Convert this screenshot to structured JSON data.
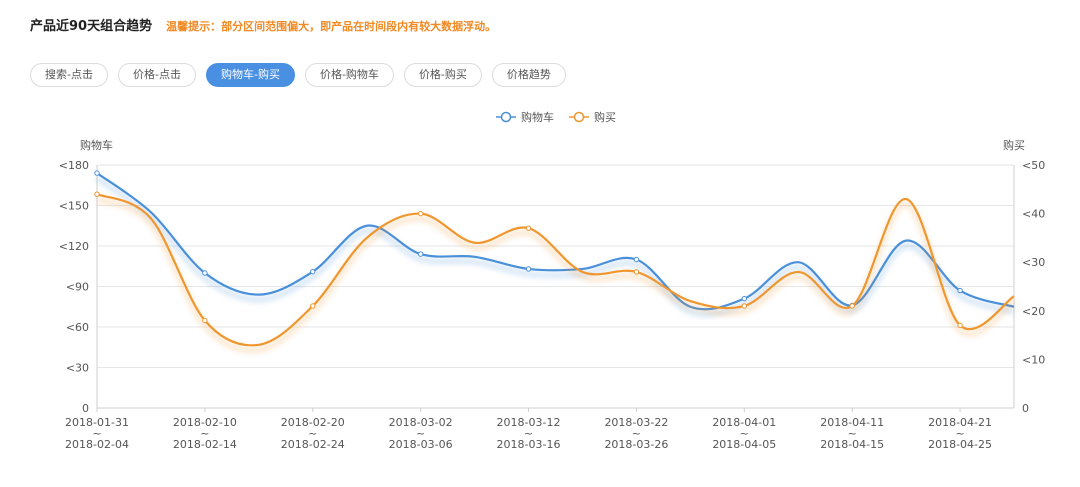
{
  "header": {
    "title": "产品近90天组合趋势",
    "hint": "温馨提示：部分区间范围偏大，即产品在时间段内有较大数据浮动。"
  },
  "tabs": [
    {
      "label": "搜索-点击",
      "active": false
    },
    {
      "label": "价格-点击",
      "active": false
    },
    {
      "label": "购物车-购买",
      "active": true
    },
    {
      "label": "价格-购物车",
      "active": false
    },
    {
      "label": "价格-购买",
      "active": false
    },
    {
      "label": "价格趋势",
      "active": false
    }
  ],
  "colors": {
    "cart": "#4a90d9",
    "buy": "#f0962e",
    "active_tab": "#4a90e2",
    "hint": "#f08a24"
  },
  "chart_data": {
    "type": "line",
    "categories": [
      [
        "2018-01-31",
        "~",
        "2018-02-04"
      ],
      [
        "2018-02-10",
        "~",
        "2018-02-14"
      ],
      [
        "2018-02-20",
        "~",
        "2018-02-24"
      ],
      [
        "2018-03-02",
        "~",
        "2018-03-06"
      ],
      [
        "2018-03-12",
        "~",
        "2018-03-16"
      ],
      [
        "2018-03-22",
        "~",
        "2018-03-26"
      ],
      [
        "2018-04-01",
        "~",
        "2018-04-05"
      ],
      [
        "2018-04-11",
        "~",
        "2018-04-15"
      ],
      [
        "2018-04-21",
        "~",
        "2018-04-25"
      ]
    ],
    "x": [
      0,
      2,
      4,
      6,
      8,
      10,
      12,
      14,
      16,
      17
    ],
    "series": [
      {
        "name": "购物车",
        "axis": "left",
        "color": "#4a90d9",
        "x": [
          0,
          1,
          2,
          3,
          4,
          5,
          6,
          7,
          8,
          9,
          10,
          11,
          12,
          13,
          14,
          15,
          16,
          17
        ],
        "values": [
          174,
          145,
          100,
          84,
          101,
          135,
          114,
          112,
          103,
          103,
          110,
          75,
          81,
          108,
          76,
          124,
          87,
          75
        ],
        "markers": [
          0,
          2,
          4,
          6,
          8,
          10,
          12,
          14,
          16
        ]
      },
      {
        "name": "购买",
        "axis": "right",
        "color": "#f0962e",
        "x": [
          0,
          1,
          2,
          3,
          4,
          5,
          6,
          7,
          8,
          9,
          10,
          11,
          12,
          13,
          14,
          15,
          16,
          17
        ],
        "values": [
          44,
          39,
          18,
          13,
          21,
          35,
          40,
          34,
          37,
          28,
          28,
          22,
          21,
          28,
          21,
          43,
          17,
          23
        ],
        "markers": [
          0,
          2,
          4,
          6,
          8,
          10,
          12,
          14,
          16
        ]
      }
    ],
    "y_left": {
      "label": "购物车",
      "ticks": [
        "0",
        "<30",
        "<60",
        "<90",
        "<120",
        "<150",
        "<180"
      ],
      "values": [
        0,
        30,
        60,
        90,
        120,
        150,
        180
      ],
      "ylim": [
        0,
        180
      ]
    },
    "y_right": {
      "label": "购买",
      "ticks": [
        "0",
        "<10",
        "<20",
        "<30",
        "<40",
        "<50"
      ],
      "values": [
        0,
        10,
        20,
        30,
        40,
        50
      ],
      "ylim": [
        0,
        50
      ]
    },
    "legend": [
      "购物车",
      "购买"
    ],
    "legend_position": "top-center",
    "grid": true
  }
}
